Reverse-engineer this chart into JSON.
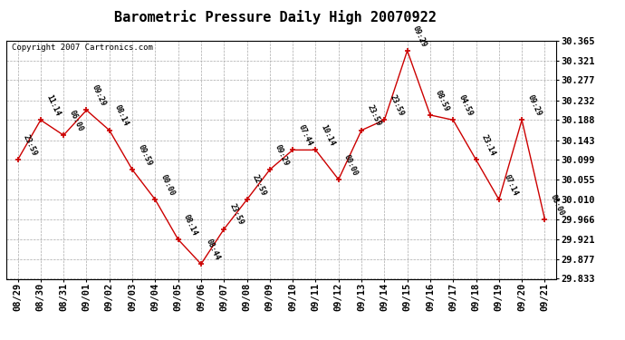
{
  "title": "Barometric Pressure Daily High 20070922",
  "copyright": "Copyright 2007 Cartronics.com",
  "x_labels": [
    "08/29",
    "08/30",
    "08/31",
    "09/01",
    "09/02",
    "09/03",
    "09/04",
    "09/05",
    "09/06",
    "09/07",
    "09/08",
    "09/09",
    "09/10",
    "09/11",
    "09/12",
    "09/13",
    "09/14",
    "09/15",
    "09/16",
    "09/17",
    "09/18",
    "09/19",
    "09/20",
    "09/21"
  ],
  "y_values": [
    30.099,
    30.188,
    30.154,
    30.21,
    30.165,
    30.077,
    30.01,
    29.921,
    29.866,
    29.944,
    30.01,
    30.077,
    30.121,
    30.121,
    30.055,
    30.165,
    30.188,
    30.343,
    30.199,
    30.188,
    30.099,
    30.01,
    30.188,
    29.966
  ],
  "time_labels": [
    "23:59",
    "11:14",
    "06:00",
    "09:29",
    "08:14",
    "09:59",
    "00:00",
    "08:14",
    "08:44",
    "23:59",
    "22:59",
    "09:29",
    "07:44",
    "10:14",
    "00:00",
    "23:59",
    "23:59",
    "09:29",
    "08:59",
    "04:59",
    "23:14",
    "07:14",
    "09:29",
    "08:00"
  ],
  "y_min": 29.833,
  "y_max": 30.365,
  "y_ticks": [
    29.833,
    29.877,
    29.921,
    29.966,
    30.01,
    30.055,
    30.099,
    30.143,
    30.188,
    30.232,
    30.277,
    30.321,
    30.365
  ],
  "line_color": "#cc0000",
  "marker_color": "#cc0000",
  "bg_color": "#ffffff",
  "grid_color": "#aaaaaa",
  "title_fontsize": 11,
  "tick_fontsize": 7.5,
  "annotation_fontsize": 6,
  "annotation_rotation": -65
}
